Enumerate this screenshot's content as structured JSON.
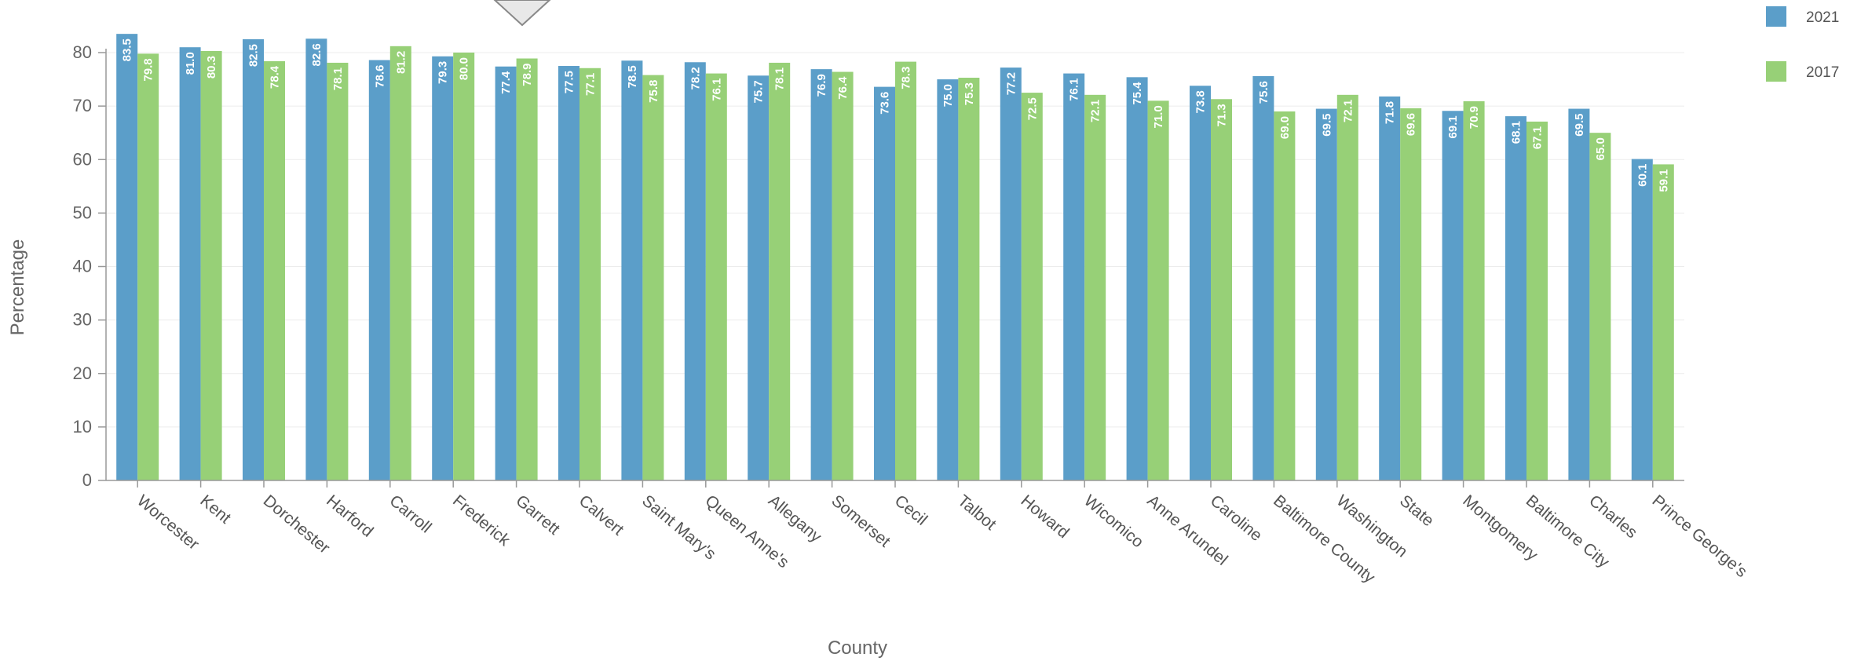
{
  "chart_data": {
    "type": "bar",
    "xlabel": "County",
    "ylabel": "Percentage",
    "ylim": [
      0,
      80
    ],
    "yticks": [
      0,
      10,
      20,
      30,
      40,
      50,
      60,
      70,
      80
    ],
    "grid": true,
    "legend_position": "top-right",
    "categories": [
      "Worcester",
      "Kent",
      "Dorchester",
      "Harford",
      "Carroll",
      "Frederick",
      "Garrett",
      "Calvert",
      "Saint Mary's",
      "Queen Anne's",
      "Allegany",
      "Somerset",
      "Cecil",
      "Talbot",
      "Howard",
      "Wicomico",
      "Anne Arundel",
      "Caroline",
      "Baltimore County",
      "Washington",
      "State",
      "Montgomery",
      "Baltimore City",
      "Charles",
      "Prince George's"
    ],
    "series": [
      {
        "name": "2021",
        "color": "#5b9ec9",
        "values": [
          83.5,
          81.0,
          82.5,
          82.6,
          78.6,
          79.3,
          77.4,
          77.5,
          78.5,
          78.2,
          75.7,
          76.9,
          73.6,
          75.0,
          77.2,
          76.1,
          75.4,
          73.8,
          75.6,
          69.5,
          71.8,
          69.1,
          68.1,
          69.5,
          60.1
        ]
      },
      {
        "name": "2017",
        "color": "#97d077",
        "values": [
          79.8,
          80.3,
          78.4,
          78.1,
          81.2,
          80.0,
          78.9,
          77.1,
          75.8,
          76.1,
          78.1,
          76.4,
          78.3,
          75.3,
          72.5,
          72.1,
          71.0,
          71.3,
          69.0,
          72.1,
          69.6,
          70.9,
          67.1,
          65.0,
          59.1
        ]
      }
    ]
  }
}
